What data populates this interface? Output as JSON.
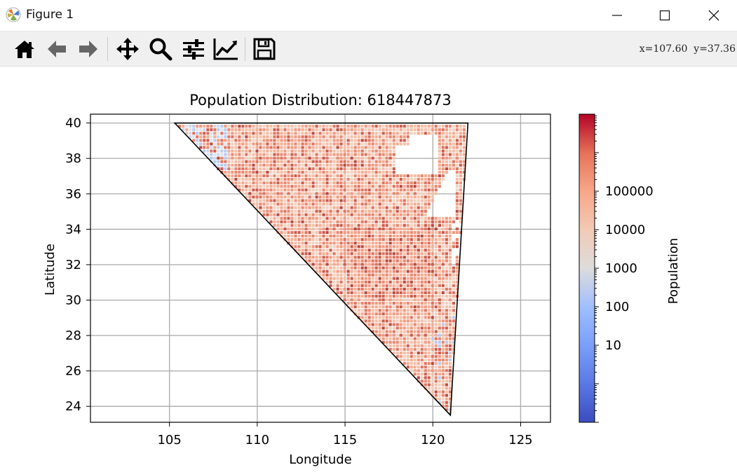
{
  "window": {
    "title": "Figure 1",
    "controls": [
      "minimize",
      "maximize",
      "close"
    ]
  },
  "toolbar": {
    "buttons": [
      {
        "name": "home",
        "icon": "home-icon"
      },
      {
        "name": "back",
        "icon": "arrow-left-icon"
      },
      {
        "name": "forward",
        "icon": "arrow-right-icon"
      },
      {
        "name": "pan",
        "icon": "move-icon"
      },
      {
        "name": "zoom",
        "icon": "zoom-icon"
      },
      {
        "name": "configure-subplots",
        "icon": "sliders-icon"
      },
      {
        "name": "edit-axis",
        "icon": "line-chart-icon"
      },
      {
        "name": "save",
        "icon": "save-icon"
      }
    ],
    "coords_text": "x=107.60  y=37.36"
  },
  "chart_data": {
    "type": "heatmap",
    "title": "Population Distribution: 618447873",
    "xlabel": "Longitude",
    "ylabel": "Latitude",
    "xlim": [
      100.5,
      126.7
    ],
    "ylim": [
      23.1,
      40.5
    ],
    "xticks": [
      105,
      110,
      115,
      120,
      125
    ],
    "yticks": [
      24,
      26,
      28,
      30,
      32,
      34,
      36,
      38,
      40
    ],
    "grid": true,
    "triangle_vertices": [
      [
        105.3,
        40.0
      ],
      [
        122.0,
        40.0
      ],
      [
        121.0,
        23.5
      ]
    ],
    "colorbar": {
      "label": "Population",
      "scale": "log",
      "colormap": "coolwarm",
      "range": [
        0.1,
        10000000
      ],
      "tick_labels": [
        "10",
        "100",
        "1000",
        "10000",
        "100000"
      ],
      "tick_values": [
        10,
        100,
        1000,
        10000,
        100000
      ]
    },
    "colors": {
      "low": "#3b4cc0",
      "mid": "#dddddd",
      "high": "#b40426"
    }
  }
}
